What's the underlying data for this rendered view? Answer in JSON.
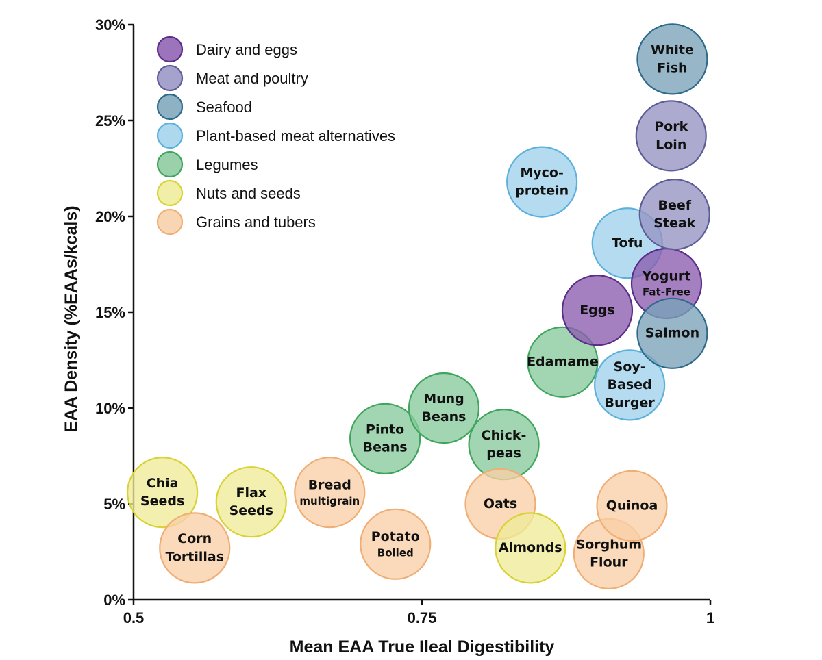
{
  "chart_data": {
    "type": "scatter",
    "xlabel": "Mean EAA True Ileal Digestibility",
    "ylabel": "EAA Density (%EAAs/kcals)",
    "xlim": [
      0.5,
      1.0
    ],
    "ylim": [
      0,
      30
    ],
    "x_ticks": [
      {
        "value": 0.5,
        "label": "0.5"
      },
      {
        "value": 0.75,
        "label": "0.75"
      },
      {
        "value": 1.0,
        "label": "1"
      }
    ],
    "y_ticks": [
      {
        "value": 0,
        "label": "0%"
      },
      {
        "value": 5,
        "label": "5%"
      },
      {
        "value": 10,
        "label": "10%"
      },
      {
        "value": 15,
        "label": "15%"
      },
      {
        "value": 20,
        "label": "20%"
      },
      {
        "value": 25,
        "label": "25%"
      },
      {
        "value": 30,
        "label": "30%"
      }
    ],
    "categories": [
      {
        "key": "dairy",
        "name": "Dairy and eggs",
        "fill": "#8a5cb0",
        "stroke": "#5a2d8a"
      },
      {
        "key": "meat",
        "name": "Meat and poultry",
        "fill": "#9593c2",
        "stroke": "#5e5c98"
      },
      {
        "key": "seafood",
        "name": "Seafood",
        "fill": "#7aa3b9",
        "stroke": "#2e6a8a"
      },
      {
        "key": "plant",
        "name": "Plant-based meat alternatives",
        "fill": "#9fd1ea",
        "stroke": "#5cb1dc"
      },
      {
        "key": "legumes",
        "name": "Legumes",
        "fill": "#88c99b",
        "stroke": "#3fa55c"
      },
      {
        "key": "nuts",
        "name": "Nuts and seeds",
        "fill": "#eeeb98",
        "stroke": "#d8d233"
      },
      {
        "key": "grains",
        "name": "Grains and tubers",
        "fill": "#f8cfa6",
        "stroke": "#f0ae74"
      }
    ],
    "points": [
      {
        "name": "Chia Seeds",
        "lines": [
          "Chia",
          "Seeds"
        ],
        "category": "nuts",
        "x": 0.525,
        "y": 5.6
      },
      {
        "name": "Corn Tortillas",
        "lines": [
          "Corn",
          "Tortillas"
        ],
        "category": "grains",
        "x": 0.553,
        "y": 2.7
      },
      {
        "name": "Flax Seeds",
        "lines": [
          "Flax",
          "Seeds"
        ],
        "category": "nuts",
        "x": 0.602,
        "y": 5.1
      },
      {
        "name": "Bread multigrain",
        "lines": [
          "Bread",
          "multigrain"
        ],
        "category": "grains",
        "x": 0.67,
        "y": 5.6
      },
      {
        "name": "Potato Boiled",
        "lines": [
          "Potato",
          "Boiled"
        ],
        "category": "grains",
        "x": 0.727,
        "y": 2.9
      },
      {
        "name": "Pinto Beans",
        "lines": [
          "Pinto",
          "Beans"
        ],
        "category": "legumes",
        "x": 0.718,
        "y": 8.4
      },
      {
        "name": "Mung Beans",
        "lines": [
          "Mung",
          "Beans"
        ],
        "category": "legumes",
        "x": 0.769,
        "y": 10.0
      },
      {
        "name": "Chick-peas",
        "lines": [
          "Chick-",
          "peas"
        ],
        "category": "legumes",
        "x": 0.821,
        "y": 8.1
      },
      {
        "name": "Oats",
        "lines": [
          "Oats"
        ],
        "category": "grains",
        "x": 0.818,
        "y": 5.0
      },
      {
        "name": "Almonds",
        "lines": [
          "Almonds"
        ],
        "category": "nuts",
        "x": 0.844,
        "y": 2.7
      },
      {
        "name": "Sorghum Flour",
        "lines": [
          "Sorghum",
          "Flour"
        ],
        "category": "grains",
        "x": 0.912,
        "y": 2.4
      },
      {
        "name": "Quinoa",
        "lines": [
          "Quinoa"
        ],
        "category": "grains",
        "x": 0.932,
        "y": 4.9
      },
      {
        "name": "Edamame",
        "lines": [
          "Edamame"
        ],
        "category": "legumes",
        "x": 0.872,
        "y": 12.4
      },
      {
        "name": "Soy-Based Burger",
        "lines": [
          "Soy-",
          "Based",
          "Burger"
        ],
        "category": "plant",
        "x": 0.93,
        "y": 11.2
      },
      {
        "name": "Myco-protein",
        "lines": [
          "Myco-",
          "protein"
        ],
        "category": "plant",
        "x": 0.854,
        "y": 21.8
      },
      {
        "name": "Tofu",
        "lines": [
          "Tofu"
        ],
        "category": "plant",
        "x": 0.928,
        "y": 18.6
      },
      {
        "name": "Eggs",
        "lines": [
          "Eggs"
        ],
        "category": "dairy",
        "x": 0.902,
        "y": 15.1
      },
      {
        "name": "Yogurt Fat-Free",
        "lines": [
          "Yogurt",
          "Fat-Free"
        ],
        "category": "dairy",
        "x": 0.962,
        "y": 16.5
      },
      {
        "name": "Salmon",
        "lines": [
          "Salmon"
        ],
        "category": "seafood",
        "x": 0.967,
        "y": 13.9
      },
      {
        "name": "Beef Steak",
        "lines": [
          "Beef",
          "Steak"
        ],
        "category": "meat",
        "x": 0.969,
        "y": 20.1
      },
      {
        "name": "Pork Loin",
        "lines": [
          "Pork",
          "Loin"
        ],
        "category": "meat",
        "x": 0.966,
        "y": 24.2
      },
      {
        "name": "White Fish",
        "lines": [
          "White",
          "Fish"
        ],
        "category": "seafood",
        "x": 0.967,
        "y": 28.2
      }
    ]
  }
}
